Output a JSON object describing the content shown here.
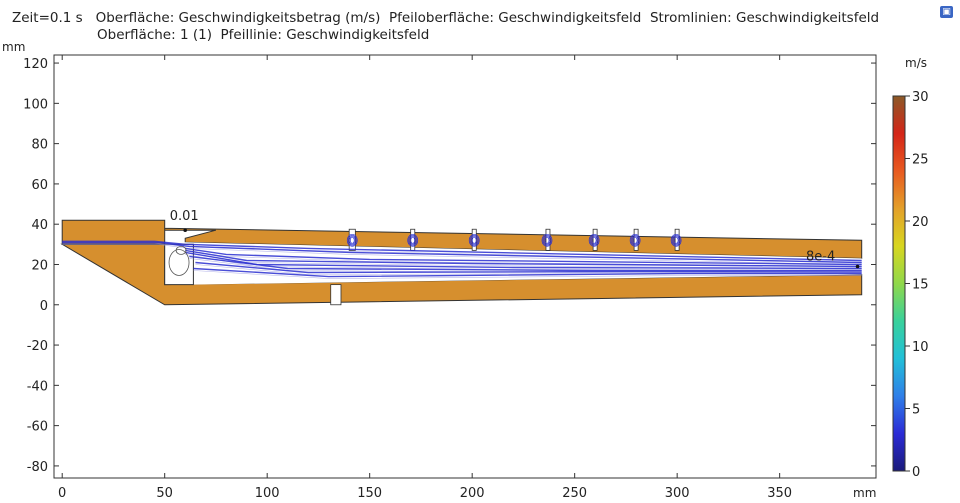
{
  "title": {
    "line1": "Zeit=0.1 s   Oberfläche: Geschwindigkeitsbetrag (m/s)  Pfeiloberfläche: Geschwindigkeitsfeld  Stromlinien: Geschwindigkeitsfeld",
    "line2": "Oberfläche: 1 (1)  Pfeillinie: Geschwindigkeitsfeld"
  },
  "icons": {
    "corner": "comsol-logo-icon"
  },
  "colors": {
    "domain": "#d68f2e",
    "streamline": "#2a2fd0",
    "frame": "#333333"
  },
  "chart_data": {
    "type": "heatmap",
    "xunit": "mm",
    "yunit": "mm",
    "xlim": [
      -4,
      397
    ],
    "ylim": [
      -86,
      124
    ],
    "xticks": [
      "0",
      "50",
      "100",
      "150",
      "200",
      "250",
      "300",
      "350"
    ],
    "yticks": [
      "120",
      "100",
      "80",
      "60",
      "40",
      "20",
      "0",
      "-20",
      "-40",
      "-60",
      "-80"
    ],
    "colorbar": {
      "unit": "m/s",
      "range": [
        0,
        30
      ],
      "ticks": [
        "30",
        "25",
        "20",
        "15",
        "10",
        "5",
        "0"
      ],
      "stops": [
        "#1a1a7a",
        "#2b2bd6",
        "#2f7fe8",
        "#22c0d8",
        "#39d19b",
        "#90d84a",
        "#d8d61f",
        "#e3a02a",
        "#e85a20",
        "#d42518",
        "#8b5a28"
      ]
    },
    "annotations": [
      {
        "text": "0.01",
        "x": 59.5,
        "y": 42
      },
      {
        "text": "8e-4",
        "x": 370,
        "y": 22
      }
    ],
    "geometry": {
      "upper_block": [
        [
          0,
          42
        ],
        [
          50,
          42
        ],
        [
          50,
          37
        ],
        [
          75,
          37
        ],
        [
          60,
          33
        ],
        [
          60,
          31
        ],
        [
          390,
          23
        ],
        [
          390,
          32
        ],
        [
          50,
          38
        ],
        [
          50,
          30
        ],
        [
          0,
          30
        ]
      ],
      "lower_block": [
        [
          0,
          30
        ],
        [
          50,
          30
        ],
        [
          50,
          10
        ],
        [
          390,
          15
        ],
        [
          390,
          5
        ],
        [
          50,
          0
        ]
      ],
      "pocket": [
        [
          50,
          10
        ],
        [
          64,
          10
        ],
        [
          64,
          30
        ],
        [
          50,
          30
        ]
      ],
      "slots": [
        [
          140,
          143
        ],
        [
          170,
          172
        ],
        [
          200,
          202
        ],
        [
          236,
          237
        ],
        [
          259,
          260
        ],
        [
          279,
          280
        ],
        [
          299,
          300
        ]
      ],
      "gap": [
        131,
        136
      ]
    }
  }
}
